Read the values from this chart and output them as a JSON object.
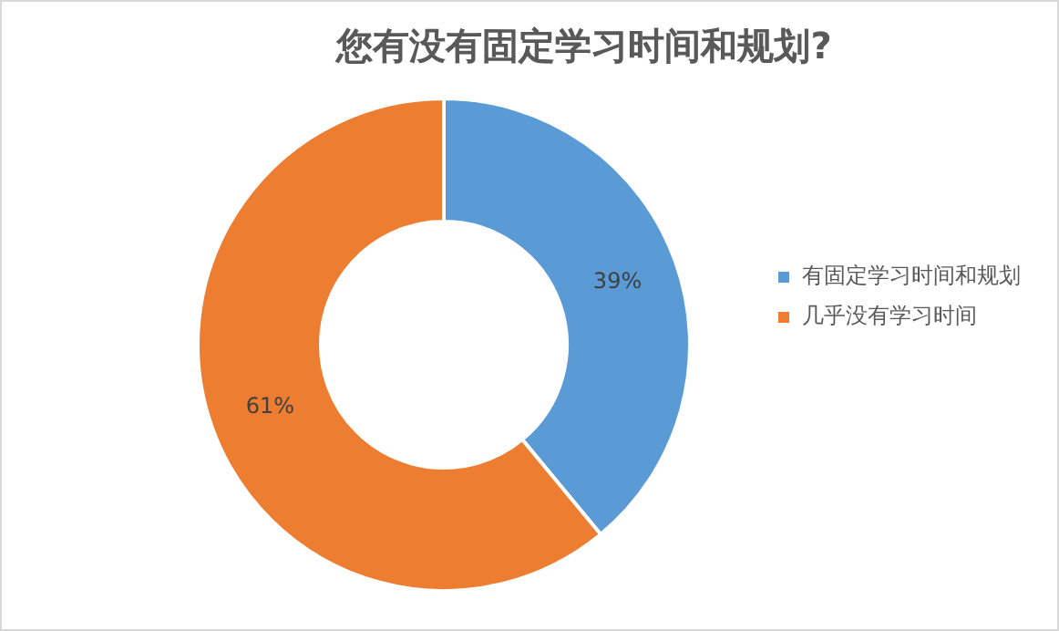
{
  "chart_data": {
    "type": "donut",
    "title": "您有没有固定学习时间和规划?",
    "categories": [
      "有固定学习时间和规划",
      "几乎没有学习时间"
    ],
    "values": [
      39,
      61
    ],
    "colors": [
      "#5b9bd5",
      "#ed7d31"
    ],
    "value_labels": [
      "39%",
      "61%"
    ],
    "legend": "right"
  }
}
